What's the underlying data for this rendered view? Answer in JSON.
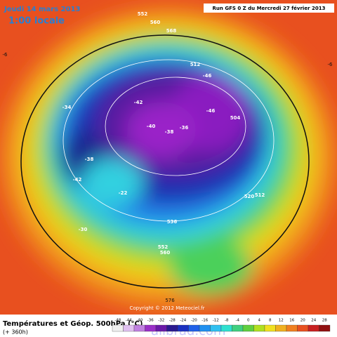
{
  "header": {
    "date": "Jeudi 14 mars 2013",
    "time": "1:00 locale",
    "run": "Run GFS 0 Z du Mercredi 27 février 2013"
  },
  "footer": {
    "title": "Températures et Géop. 500hPa (°C)",
    "lead": "(+ 360h)",
    "copyright": "Copyright © 2012 Meteociel.fr",
    "watermark": "allbrad.com"
  },
  "scale": {
    "labels": [
      -48,
      -44,
      -40,
      -36,
      -32,
      -28,
      -24,
      -20,
      -16,
      -12,
      -8,
      -4,
      0,
      4,
      8,
      12,
      16,
      20,
      24,
      28
    ]
  },
  "contours": [
    "552",
    "560",
    "568",
    "512",
    "504",
    "-46",
    "-42",
    "-34",
    "-38",
    "-42",
    "-36",
    "-40",
    "-38",
    "-46",
    "520",
    "512",
    "-30",
    "536",
    "552",
    "-22",
    "560",
    "576",
    "-6",
    "-6"
  ]
}
